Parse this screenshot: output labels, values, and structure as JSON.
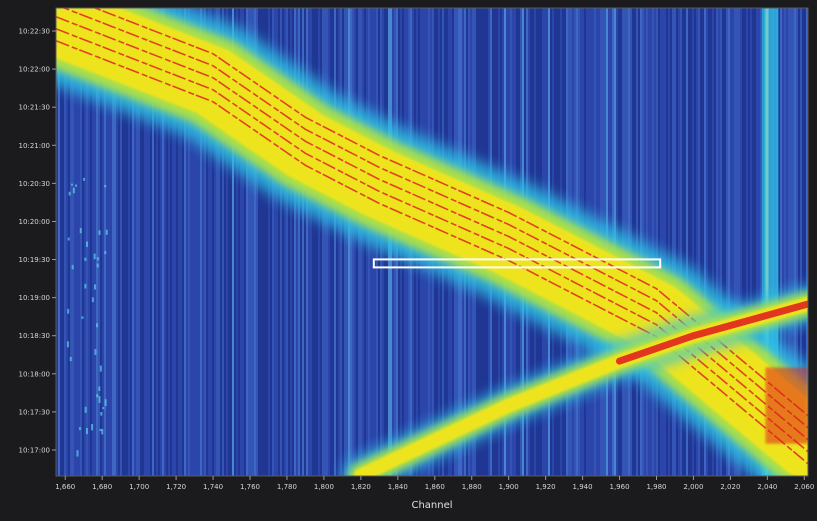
{
  "chart_data": {
    "type": "heatmap",
    "xlabel": "Channel",
    "ylabel": "",
    "x_ticks": [
      "1,660",
      "1,680",
      "1,700",
      "1,720",
      "1,740",
      "1,760",
      "1,780",
      "1,800",
      "1,820",
      "1,840",
      "1,860",
      "1,880",
      "1,900",
      "1,920",
      "1,940",
      "1,960",
      "1,980",
      "2,000",
      "2,020",
      "2,040",
      "2,060"
    ],
    "y_ticks": [
      "10:22:30",
      "10:22:00",
      "10:21:30",
      "10:21:00",
      "10:20:30",
      "10:20:00",
      "10:19:30",
      "10:19:00",
      "10:18:30",
      "10:18:00",
      "10:17:30",
      "10:17:00"
    ],
    "xlim": [
      1655,
      2062
    ],
    "ylim_seconds_from_top": [
      0,
      370
    ],
    "traces": [
      {
        "description_points": [
          [
            1655,
            "10:22:38"
          ],
          [
            1740,
            "10:21:50"
          ],
          [
            1790,
            "10:21:00"
          ],
          [
            1830,
            "10:20:30"
          ],
          [
            1900,
            "10:19:45"
          ],
          [
            1980,
            "10:18:45"
          ],
          [
            2062,
            "10:17:05"
          ]
        ],
        "intensity": "high"
      },
      {
        "description_points": [
          [
            1820,
            "10:16:40"
          ],
          [
            1900,
            "10:17:35"
          ],
          [
            1960,
            "10:18:10"
          ],
          [
            2000,
            "10:18:30"
          ],
          [
            2062,
            "10:18:55"
          ]
        ],
        "intensity": "high"
      }
    ],
    "highlight_box": {
      "x_range": [
        1827,
        1982
      ],
      "time": "10:19:27"
    },
    "colors": {
      "background": "#2a3fa0",
      "low": "#1f3e9e",
      "mid": "#2fc1e6",
      "high": "#f2e51a",
      "peak": "#e0241d",
      "highlight_box": "#ffffff"
    }
  }
}
